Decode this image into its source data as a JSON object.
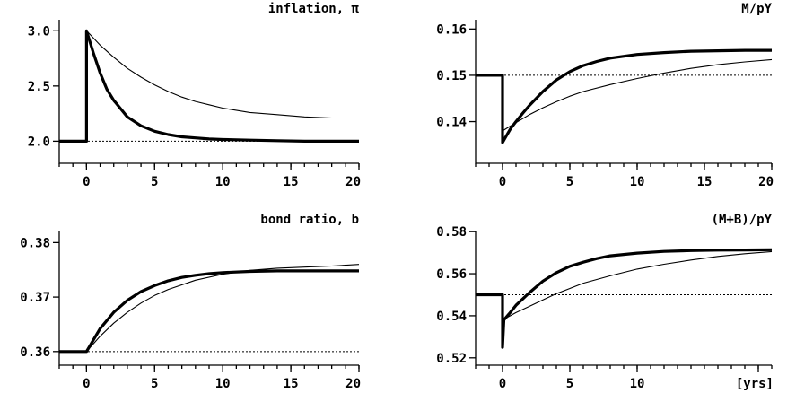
{
  "chart_data": [
    {
      "type": "line",
      "title": "inflation, π",
      "xlim": [
        -2,
        20
      ],
      "ylim": [
        1.8,
        3.1
      ],
      "xticks": [
        0,
        5,
        10,
        15,
        20
      ],
      "xtick_labels": [
        "0",
        "5",
        "10",
        "15",
        "20"
      ],
      "yticks": [
        2.0,
        2.5,
        3.0
      ],
      "ytick_labels": [
        "2.0",
        "2.5",
        "3.0"
      ],
      "reference_line": 2.0,
      "grid": false,
      "series": [
        {
          "style": "thick",
          "x": [
            -2,
            0,
            0,
            0.5,
            1,
            1.5,
            2,
            3,
            4,
            5,
            6,
            7,
            8,
            9,
            10,
            12,
            14,
            16,
            18,
            20
          ],
          "values": [
            2.0,
            2.0,
            3.0,
            2.8,
            2.62,
            2.47,
            2.37,
            2.22,
            2.14,
            2.09,
            2.06,
            2.04,
            2.03,
            2.02,
            2.015,
            2.01,
            2.005,
            2.0,
            2.0,
            2.0
          ]
        },
        {
          "style": "thin",
          "x": [
            0,
            1,
            2,
            3,
            4,
            5,
            6,
            7,
            8,
            9,
            10,
            12,
            14,
            16,
            18,
            20
          ],
          "values": [
            3.0,
            2.87,
            2.76,
            2.66,
            2.58,
            2.51,
            2.45,
            2.4,
            2.36,
            2.33,
            2.3,
            2.26,
            2.24,
            2.22,
            2.21,
            2.21
          ]
        }
      ]
    },
    {
      "type": "line",
      "title": "M/pY",
      "xlim": [
        -2,
        20
      ],
      "ylim": [
        0.131,
        0.162
      ],
      "xticks": [
        0,
        5,
        10,
        15,
        20
      ],
      "xtick_labels": [
        "0",
        "5",
        "10",
        "15",
        "20"
      ],
      "yticks": [
        0.14,
        0.15,
        0.16
      ],
      "ytick_labels": [
        "0.14",
        "0.15",
        "0.16"
      ],
      "reference_line": 0.15,
      "grid": false,
      "series": [
        {
          "style": "thick",
          "x": [
            -2,
            0,
            0,
            0.3,
            0.6,
            1,
            1.5,
            2,
            3,
            4,
            5,
            6,
            7,
            8,
            10,
            12,
            14,
            16,
            18,
            20
          ],
          "values": [
            0.15,
            0.15,
            0.1355,
            0.137,
            0.1385,
            0.14,
            0.1418,
            0.1435,
            0.1465,
            0.149,
            0.1508,
            0.1521,
            0.153,
            0.1537,
            0.1545,
            0.1549,
            0.1552,
            0.1553,
            0.1554,
            0.1554
          ]
        },
        {
          "style": "thin",
          "x": [
            0,
            1,
            2,
            3,
            4,
            5,
            6,
            8,
            10,
            12,
            14,
            16,
            18,
            20
          ],
          "values": [
            0.138,
            0.1398,
            0.1415,
            0.143,
            0.1443,
            0.1455,
            0.1465,
            0.148,
            0.1493,
            0.1505,
            0.1515,
            0.1523,
            0.1529,
            0.1534
          ]
        }
      ]
    },
    {
      "type": "line",
      "title": "bond ratio, b",
      "xlim": [
        -2,
        20
      ],
      "ylim": [
        0.3575,
        0.3822
      ],
      "xticks": [
        0,
        5,
        10,
        15,
        20
      ],
      "xtick_labels": [
        "0",
        "5",
        "10",
        "15",
        "20"
      ],
      "yticks": [
        0.36,
        0.37,
        0.38
      ],
      "ytick_labels": [
        "0.36",
        "0.37",
        "0.38"
      ],
      "reference_line": 0.36,
      "grid": false,
      "series": [
        {
          "style": "thick",
          "x": [
            -2,
            0,
            1,
            2,
            3,
            4,
            5,
            6,
            7,
            8,
            9,
            10,
            12,
            14,
            16,
            18,
            20
          ],
          "values": [
            0.36,
            0.36,
            0.3642,
            0.3672,
            0.3694,
            0.371,
            0.3721,
            0.373,
            0.3736,
            0.374,
            0.3743,
            0.3745,
            0.3747,
            0.3748,
            0.3748,
            0.3748,
            0.3748
          ]
        },
        {
          "style": "thin",
          "x": [
            0,
            1,
            2,
            3,
            4,
            5,
            6,
            8,
            10,
            12,
            14,
            16,
            18,
            20
          ],
          "values": [
            0.36,
            0.3628,
            0.3652,
            0.3672,
            0.3689,
            0.3703,
            0.3714,
            0.3731,
            0.3742,
            0.3749,
            0.3753,
            0.3755,
            0.3757,
            0.376
          ]
        }
      ]
    },
    {
      "type": "line",
      "title": "(M+B)/pY",
      "xlim": [
        -2,
        20
      ],
      "ylim": [
        0.5165,
        0.5805
      ],
      "xticks": [
        0,
        5,
        10,
        19
      ],
      "xtick_labels": [
        "0",
        "5",
        "10",
        "[yrs]"
      ],
      "yticks": [
        0.52,
        0.54,
        0.56,
        0.58
      ],
      "ytick_labels": [
        "0.52",
        "0.54",
        "0.56",
        "0.58"
      ],
      "reference_line": 0.55,
      "grid": false,
      "series": [
        {
          "style": "thick",
          "x": [
            -2,
            0,
            0,
            0.1,
            0.5,
            1,
            1.5,
            2,
            3,
            4,
            5,
            6,
            7,
            8,
            10,
            12,
            14,
            16,
            18,
            20
          ],
          "values": [
            0.55,
            0.55,
            0.525,
            0.538,
            0.541,
            0.545,
            0.548,
            0.551,
            0.5565,
            0.5605,
            0.5635,
            0.5655,
            0.5672,
            0.5685,
            0.5698,
            0.5706,
            0.571,
            0.5712,
            0.5713,
            0.5714
          ]
        },
        {
          "style": "thin",
          "x": [
            0,
            1,
            2,
            3,
            4,
            5,
            6,
            8,
            10,
            12,
            14,
            16,
            18,
            20
          ],
          "values": [
            0.538,
            0.5415,
            0.5445,
            0.5475,
            0.5505,
            0.553,
            0.5555,
            0.559,
            0.5622,
            0.5645,
            0.5665,
            0.5682,
            0.5695,
            0.5705
          ]
        }
      ]
    }
  ]
}
